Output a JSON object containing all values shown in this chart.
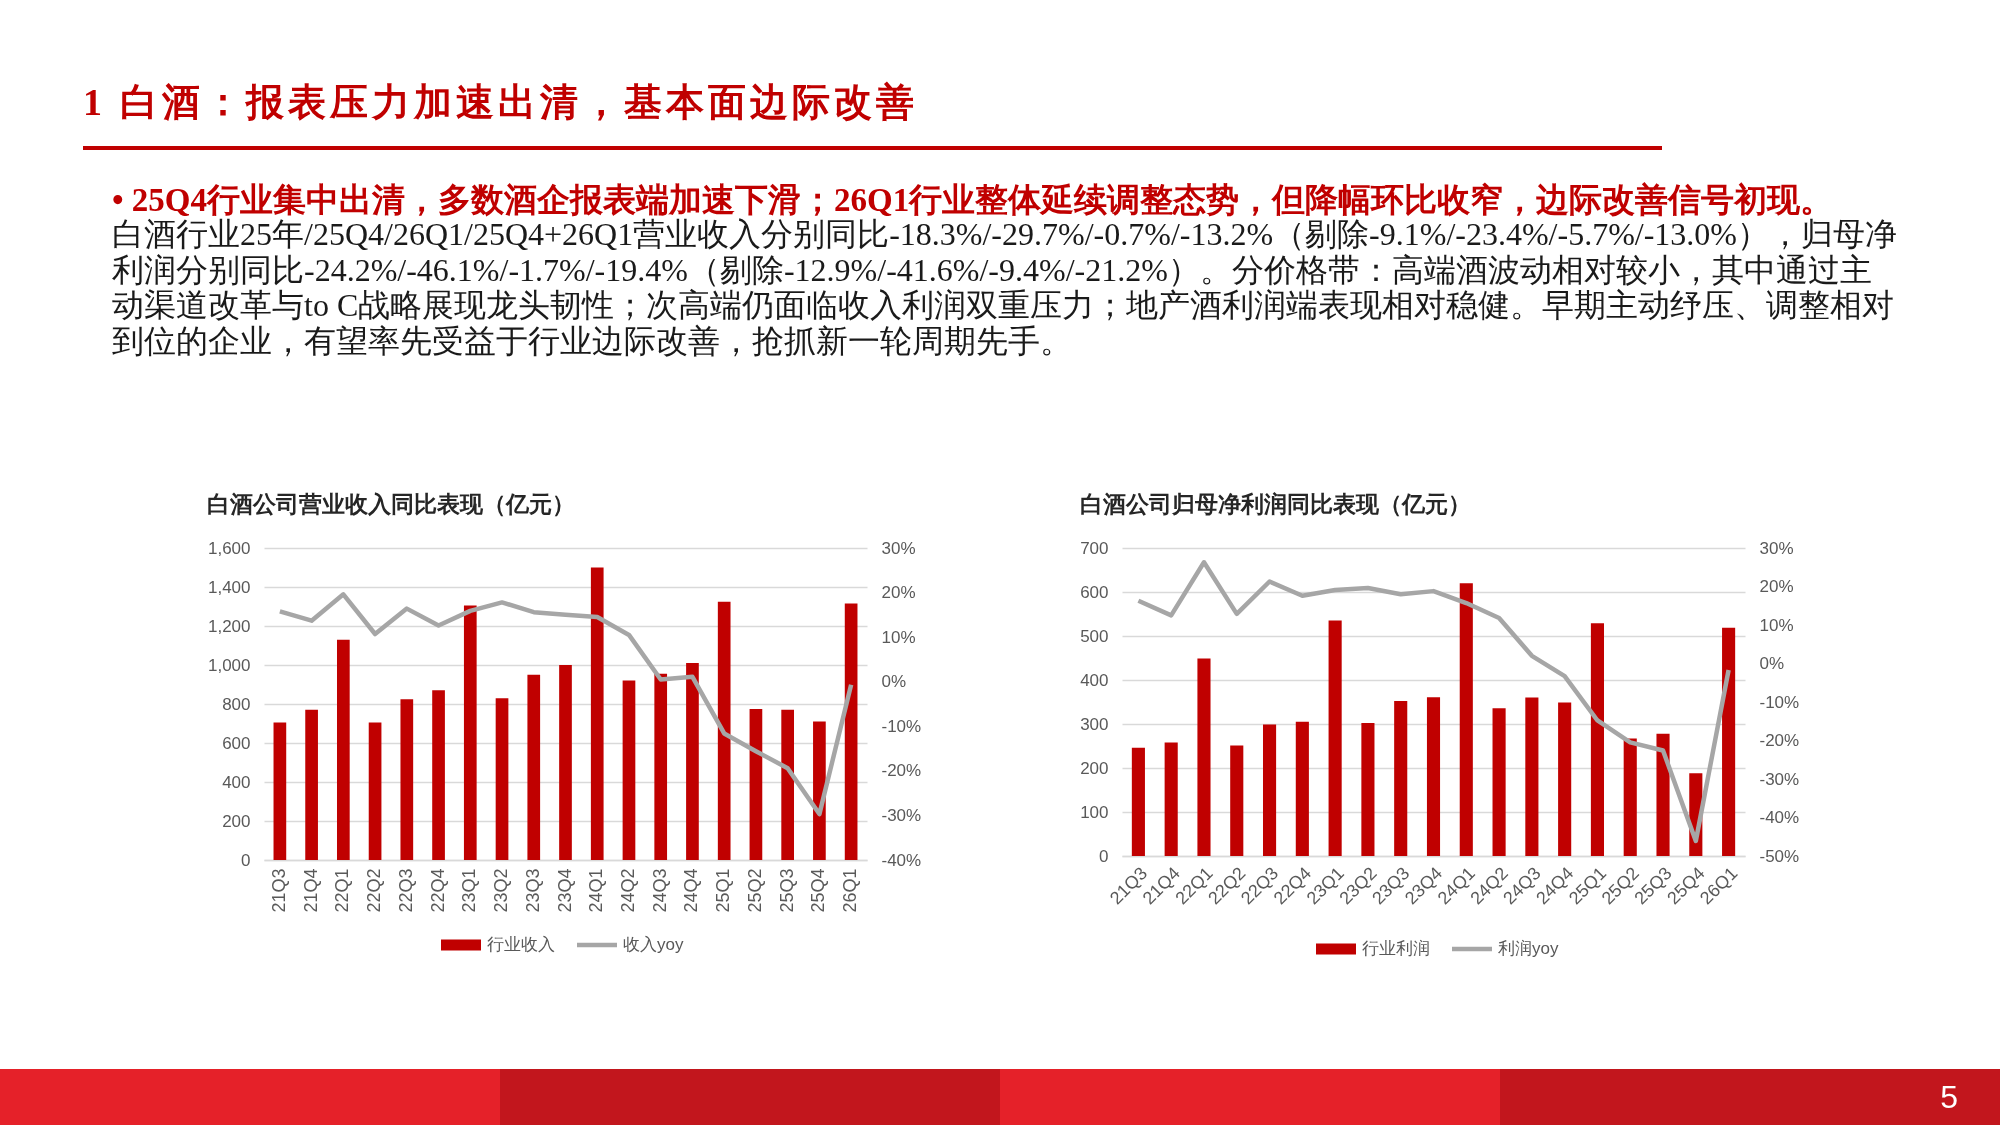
{
  "chart_data": [
    {
      "type": "other",
      "title": "1 白酒：报表压力加速出清，基本面边际改善",
      "subtitle": "• 25Q4行业集中出清，多数酒企报表端加速下滑；26Q1行业整体延续调整态势，但降幅环比收窄，边际改善信号初现。",
      "annotations": [
        "白酒行业25年/25Q4/26Q1/25Q4+26Q1营业收入分别同比-18.3%/-29.7%/-0.7%/-13.2%（剔除-9.1%/-23.4%/-5.7%/-13.0%），归母净利润分别同比-24.2%/-46.1%/-1.7%/-19.4%（剔除-12.9%/-41.6%/-9.4%/-21.2%）。分价格带：高端酒波动相对较小，其中通过主动渠道改革与to C战略展现龙头韧性；次高端仍面临收入利润双重压力；地产酒利润端表现相对稳健。早期主动纾压、调整相对到位的企业，有望率先受益于行业边际改善，抢抓新一轮周期先手。",
        "5"
      ]
    },
    {
      "type": "bar",
      "title": "白酒公司营业收入同比表现（亿元）",
      "categories": [
        "21Q3",
        "21Q4",
        "22Q1",
        "22Q2",
        "22Q3",
        "22Q4",
        "23Q1",
        "23Q2",
        "23Q3",
        "23Q4",
        "24Q1",
        "24Q2",
        "24Q3",
        "24Q4",
        "25Q1",
        "25Q2",
        "25Q3",
        "25Q4",
        "26Q1"
      ],
      "series": [
        {
          "name": "行业收入",
          "color": "#c00000",
          "values": [
            705,
            770,
            1130,
            705,
            825,
            870,
            1305,
            830,
            950,
            1000,
            1500,
            920,
            955,
            1010,
            1325,
            775,
            770,
            710,
            1315
          ]
        },
        {
          "name": "收入yoy",
          "type": "line",
          "axis": "y2",
          "color": "#a6a6a6",
          "values": [
            15.8,
            13.7,
            19.6,
            10.7,
            16.4,
            12.6,
            15.9,
            17.8,
            15.6,
            15.0,
            14.5,
            10.5,
            0.5,
            1.1,
            -11.6,
            -15.6,
            -19.4,
            -29.7,
            -0.7
          ]
        }
      ],
      "ylim": [
        0,
        1600
      ],
      "yticks": [
        0,
        200,
        400,
        600,
        800,
        {
          "value": 1000,
          "label": "1,000"
        },
        {
          "value": 1200,
          "label": "1,200"
        },
        {
          "value": 1400,
          "label": "1,400"
        },
        {
          "value": 1600,
          "label": "1,600"
        }
      ],
      "y2lim": [
        -40,
        30
      ],
      "y2ticks": [
        {
          "value": -40,
          "label": "-40%"
        },
        {
          "value": -30,
          "label": "-30%"
        },
        {
          "value": -20,
          "label": "-20%"
        },
        {
          "value": -10,
          "label": "-10%"
        },
        {
          "value": 0,
          "label": "0%"
        },
        {
          "value": 10,
          "label": "10%"
        },
        {
          "value": 20,
          "label": "20%"
        },
        {
          "value": 30,
          "label": "30%"
        }
      ],
      "grid": "y",
      "legend": "bottom"
    },
    {
      "type": "bar",
      "title": "白酒公司归母净利润同比表现（亿元）",
      "categories": [
        "21Q3",
        "21Q4",
        "22Q1",
        "22Q2",
        "22Q3",
        "22Q4",
        "23Q1",
        "23Q2",
        "23Q3",
        "23Q4",
        "24Q1",
        "24Q2",
        "24Q3",
        "24Q4",
        "25Q1",
        "25Q2",
        "25Q3",
        "25Q4",
        "26Q1"
      ],
      "series": [
        {
          "name": "行业利润",
          "color": "#c00000",
          "values": [
            246,
            258,
            449,
            251,
            299,
            305,
            535,
            302,
            352,
            361,
            620,
            336,
            360,
            349,
            529,
            267,
            278,
            188,
            519
          ]
        },
        {
          "name": "利润yoy",
          "type": "line",
          "axis": "y2",
          "color": "#a6a6a6",
          "values": [
            16.3,
            12.5,
            26.3,
            12.9,
            21.3,
            17.6,
            19.1,
            19.6,
            18.0,
            18.8,
            15.7,
            11.8,
            2.0,
            -3.3,
            -14.8,
            -20.5,
            -22.6,
            -46.1,
            -1.7
          ]
        }
      ],
      "ylim": [
        0,
        700
      ],
      "yticks": [
        0,
        100,
        200,
        300,
        400,
        500,
        600,
        700
      ],
      "y2lim": [
        -50,
        30
      ],
      "y2ticks": [
        {
          "value": -50,
          "label": "-50%"
        },
        {
          "value": -40,
          "label": "-40%"
        },
        {
          "value": -30,
          "label": "-30%"
        },
        {
          "value": -20,
          "label": "-20%"
        },
        {
          "value": -10,
          "label": "-10%"
        },
        {
          "value": 0,
          "label": "0%"
        },
        {
          "value": 10,
          "label": "10%"
        },
        {
          "value": 20,
          "label": "20%"
        },
        {
          "value": 30,
          "label": "30%"
        }
      ],
      "grid": "y",
      "legend": "bottom"
    }
  ]
}
